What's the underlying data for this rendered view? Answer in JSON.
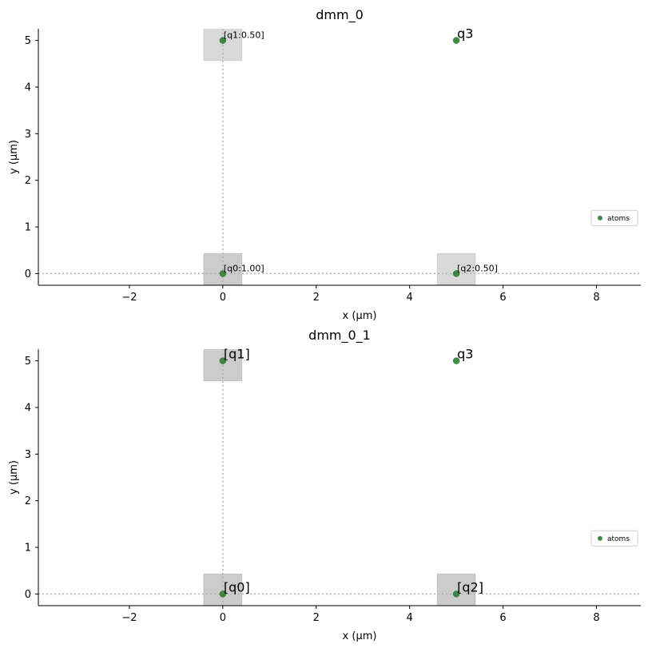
{
  "chart_data": [
    {
      "type": "scatter",
      "title": "dmm_0",
      "xlabel": "x (µm)",
      "ylabel": "y (µm)",
      "xlim": [
        -3.95,
        8.95
      ],
      "ylim": [
        -0.25,
        5.25
      ],
      "xticks": [
        -2,
        0,
        2,
        4,
        6,
        8
      ],
      "yticks": [
        0,
        1,
        2,
        3,
        4,
        5
      ],
      "grid": false,
      "legend": {
        "position": "right",
        "entries": [
          "atoms"
        ]
      },
      "series": [
        {
          "name": "atoms",
          "color": "#2e7d32",
          "x": [
            0,
            0,
            5,
            5
          ],
          "y": [
            0,
            5,
            0,
            5
          ]
        }
      ],
      "annotations": [
        {
          "text": "[q0:1.00]",
          "x": 0,
          "y": 0,
          "size": "small"
        },
        {
          "text": "[q1:0.50]",
          "x": 0,
          "y": 5,
          "size": "small"
        },
        {
          "text": "[q2:0.50]",
          "x": 5,
          "y": 0,
          "size": "small"
        },
        {
          "text": "q3",
          "x": 5,
          "y": 5,
          "size": "large"
        }
      ],
      "weight_boxes": [
        {
          "x": 0,
          "y": 0,
          "weight": 1.0
        },
        {
          "x": 0,
          "y": 5,
          "weight": 0.5
        },
        {
          "x": 5,
          "y": 0,
          "weight": 0.5
        }
      ],
      "reference_lines": {
        "x": 0,
        "y": 0
      }
    },
    {
      "type": "scatter",
      "title": "dmm_0_1",
      "xlabel": "x (µm)",
      "ylabel": "y (µm)",
      "xlim": [
        -3.95,
        8.95
      ],
      "ylim": [
        -0.25,
        5.25
      ],
      "xticks": [
        -2,
        0,
        2,
        4,
        6,
        8
      ],
      "yticks": [
        0,
        1,
        2,
        3,
        4,
        5
      ],
      "grid": false,
      "legend": {
        "position": "right",
        "entries": [
          "atoms"
        ]
      },
      "series": [
        {
          "name": "atoms",
          "color": "#2e7d32",
          "x": [
            0,
            0,
            5,
            5
          ],
          "y": [
            0,
            5,
            0,
            5
          ]
        }
      ],
      "annotations": [
        {
          "text": "[q0]",
          "x": 0,
          "y": 0,
          "size": "large"
        },
        {
          "text": "[q1]",
          "x": 0,
          "y": 5,
          "size": "large"
        },
        {
          "text": "[q2]",
          "x": 5,
          "y": 0,
          "size": "large"
        },
        {
          "text": "q3",
          "x": 5,
          "y": 5,
          "size": "large"
        }
      ],
      "weight_boxes": [
        {
          "x": 0,
          "y": 0,
          "weight": 1.0
        },
        {
          "x": 0,
          "y": 5,
          "weight": 1.0
        },
        {
          "x": 5,
          "y": 0,
          "weight": 1.0
        }
      ],
      "reference_lines": {
        "x": 0,
        "y": 0
      }
    }
  ]
}
